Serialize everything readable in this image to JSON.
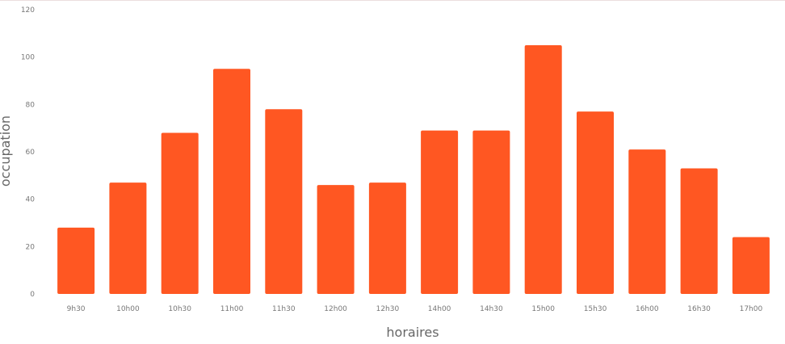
{
  "chart_data": {
    "type": "bar",
    "categories": [
      "9h30",
      "10h00",
      "10h30",
      "11h00",
      "11h30",
      "12h00",
      "12h30",
      "14h00",
      "14h30",
      "15h00",
      "15h30",
      "16h00",
      "16h30",
      "17h00"
    ],
    "values": [
      28,
      47,
      68,
      95,
      78,
      46,
      47,
      69,
      69,
      105,
      77,
      61,
      53,
      24
    ],
    "xlabel": "horaires",
    "ylabel": "occupation",
    "ylim": [
      0,
      120
    ],
    "yticks": [
      "0",
      "20",
      "40",
      "60",
      "80",
      "100",
      "120"
    ],
    "bar_color": "#ff5722",
    "grid": false,
    "legend": "none"
  }
}
